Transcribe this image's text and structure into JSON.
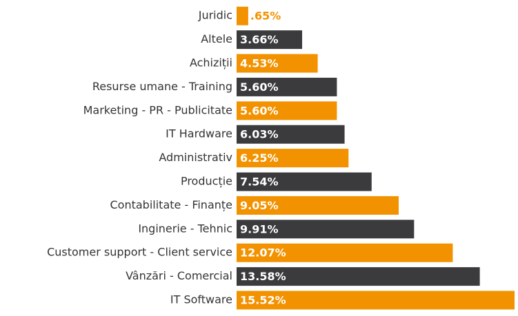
{
  "chart_data": {
    "type": "bar",
    "orientation": "horizontal",
    "categories": [
      "Juridic",
      "Altele",
      "Achiziții",
      "Resurse umane - Training",
      "Marketing - PR - Publicitate",
      "IT Hardware",
      "Administrativ",
      "Producție",
      "Contabilitate - Finanțe",
      "Inginerie - Tehnic",
      "Customer support - Client service",
      "Vânzări - Comercial",
      "IT Software"
    ],
    "values": [
      0.65,
      3.66,
      4.53,
      5.6,
      5.6,
      6.03,
      6.25,
      7.54,
      9.05,
      9.91,
      12.07,
      13.58,
      15.52
    ],
    "value_labels": [
      ".65%",
      "3.66%",
      "4.53%",
      "5.60%",
      "5.60%",
      "6.03%",
      "6.25%",
      "7.54%",
      "9.05%",
      "9.91%",
      "12.07%",
      "13.58%",
      "15.52%"
    ],
    "colors": [
      "#f39200",
      "#3b3b3d",
      "#f39200",
      "#3b3b3d",
      "#f39200",
      "#3b3b3d",
      "#f39200",
      "#3b3b3d",
      "#f39200",
      "#3b3b3d",
      "#f39200",
      "#3b3b3d",
      "#f39200"
    ]
  }
}
